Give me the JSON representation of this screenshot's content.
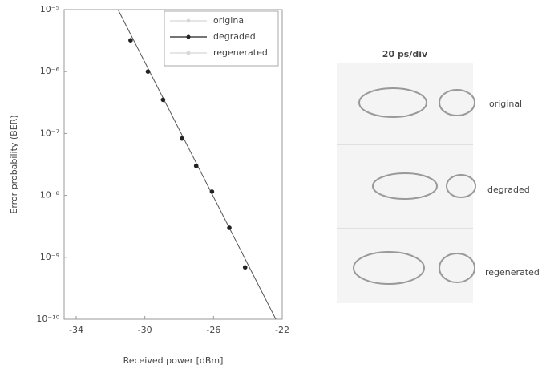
{
  "chart_data": {
    "type": "scatter",
    "xlabel": "Received power [dBm]",
    "ylabel": "Error probability (BER)",
    "log_y": true,
    "xlim": [
      -34.7,
      -22
    ],
    "xticks": [
      -34,
      -30,
      -26,
      -22
    ],
    "ylim": [
      1e-10,
      1e-05
    ],
    "yticks": [
      {
        "value": 1e-05,
        "label": "10⁻⁵"
      },
      {
        "value": 1e-06,
        "label": "10⁻⁶"
      },
      {
        "value": 1e-07,
        "label": "10⁻⁷"
      },
      {
        "value": 1e-08,
        "label": "10⁻⁸"
      },
      {
        "value": 1e-09,
        "label": "10⁻⁹"
      },
      {
        "value": 1e-10,
        "label": "10⁻¹⁰"
      }
    ],
    "legend": "upper right",
    "series": [
      {
        "name": "original",
        "color": "#d8d8d8",
        "x": [],
        "values": []
      },
      {
        "name": "degraded",
        "color": "#222222",
        "x": [
          -30.83,
          -29.82,
          -28.94,
          -27.84,
          -27.01,
          -26.09,
          -25.08,
          -24.16
        ],
        "values": [
          3.2e-06,
          1e-06,
          3.5e-07,
          8.3e-08,
          3e-08,
          1.15e-08,
          3e-09,
          6.9e-10
        ]
      },
      {
        "name": "regenerated",
        "color": "#d8d8d8",
        "x": [],
        "values": []
      }
    ],
    "fit": {
      "color": "#555555",
      "x": [
        -31.56,
        -22.37
      ],
      "values": [
        1e-05,
        1e-10
      ]
    },
    "eye": {
      "scale": "20 ps/div",
      "labels": [
        "original",
        "degraded",
        "regenerated"
      ]
    }
  }
}
